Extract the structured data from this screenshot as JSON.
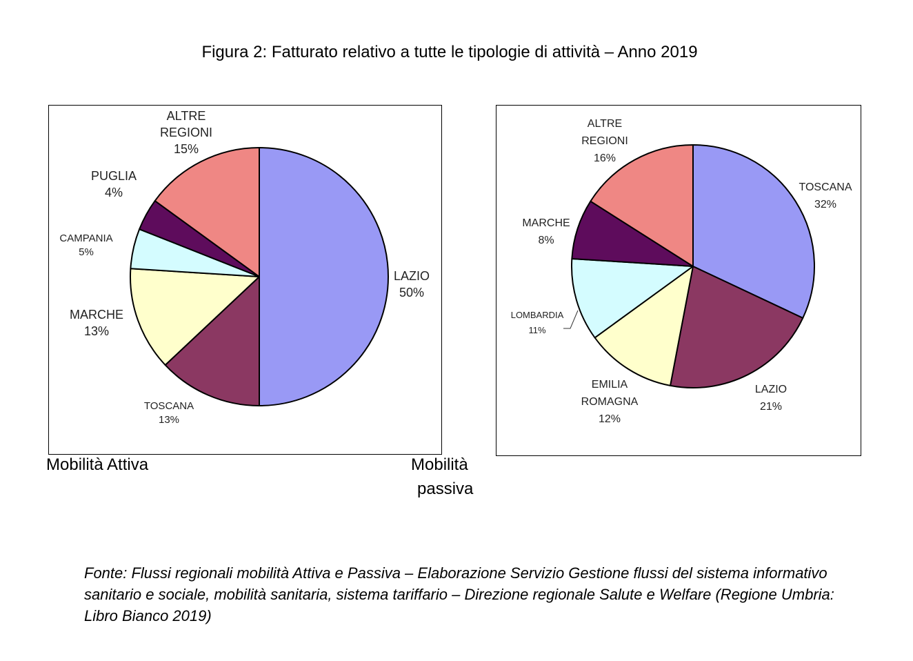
{
  "title": "Figura 2: Fatturato relativo a tutte le tipologie di attività – Anno 2019",
  "chart_data": [
    {
      "type": "pie",
      "name": "Mobilità Attiva",
      "caption": "Mobilità Attiva",
      "slices": [
        {
          "label": "LAZIO",
          "value": 50,
          "pct": "50%",
          "color": "#9999f5"
        },
        {
          "label": "TOSCANA",
          "value": 13,
          "pct": "13%",
          "color": "#8b3862"
        },
        {
          "label": "MARCHE",
          "value": 13,
          "pct": "13%",
          "color": "#ffffcc"
        },
        {
          "label": "CAMPANIA",
          "value": 5,
          "pct": "5%",
          "color": "#d4fcff"
        },
        {
          "label": "PUGLIA",
          "value": 4,
          "pct": "4%",
          "color": "#5e0c5c"
        },
        {
          "label": "ALTRE REGIONI",
          "value": 15,
          "pct": "15%",
          "color": "#ef8784"
        }
      ]
    },
    {
      "type": "pie",
      "name": "Mobilità passiva",
      "caption": "Mobilità passiva",
      "slices": [
        {
          "label": "TOSCANA",
          "value": 32,
          "pct": "32%",
          "color": "#9999f5"
        },
        {
          "label": "LAZIO",
          "value": 21,
          "pct": "21%",
          "color": "#8b3862"
        },
        {
          "label": "EMILIA ROMAGNA",
          "value": 12,
          "pct": "12%",
          "color": "#ffffcc"
        },
        {
          "label": "LOMBARDIA",
          "value": 11,
          "pct": "11%",
          "color": "#d4fcff"
        },
        {
          "label": "MARCHE",
          "value": 8,
          "pct": "8%",
          "color": "#5e0c5c"
        },
        {
          "label": "ALTRE REGIONI",
          "value": 16,
          "pct": "16%",
          "color": "#ef8784"
        }
      ]
    }
  ],
  "captions": {
    "left": "Mobilità Attiva",
    "right_line1": "Mobilità",
    "right_line2": "passiva"
  },
  "source": "Fonte: Flussi regionali mobilità Attiva e Passiva – Elaborazione Servizio Gestione flussi del sistema informativo sanitario e sociale, mobilità sanitaria, sistema tariffario – Direzione regionale Salute e Welfare (Regione Umbria: Libro Bianco 2019)"
}
